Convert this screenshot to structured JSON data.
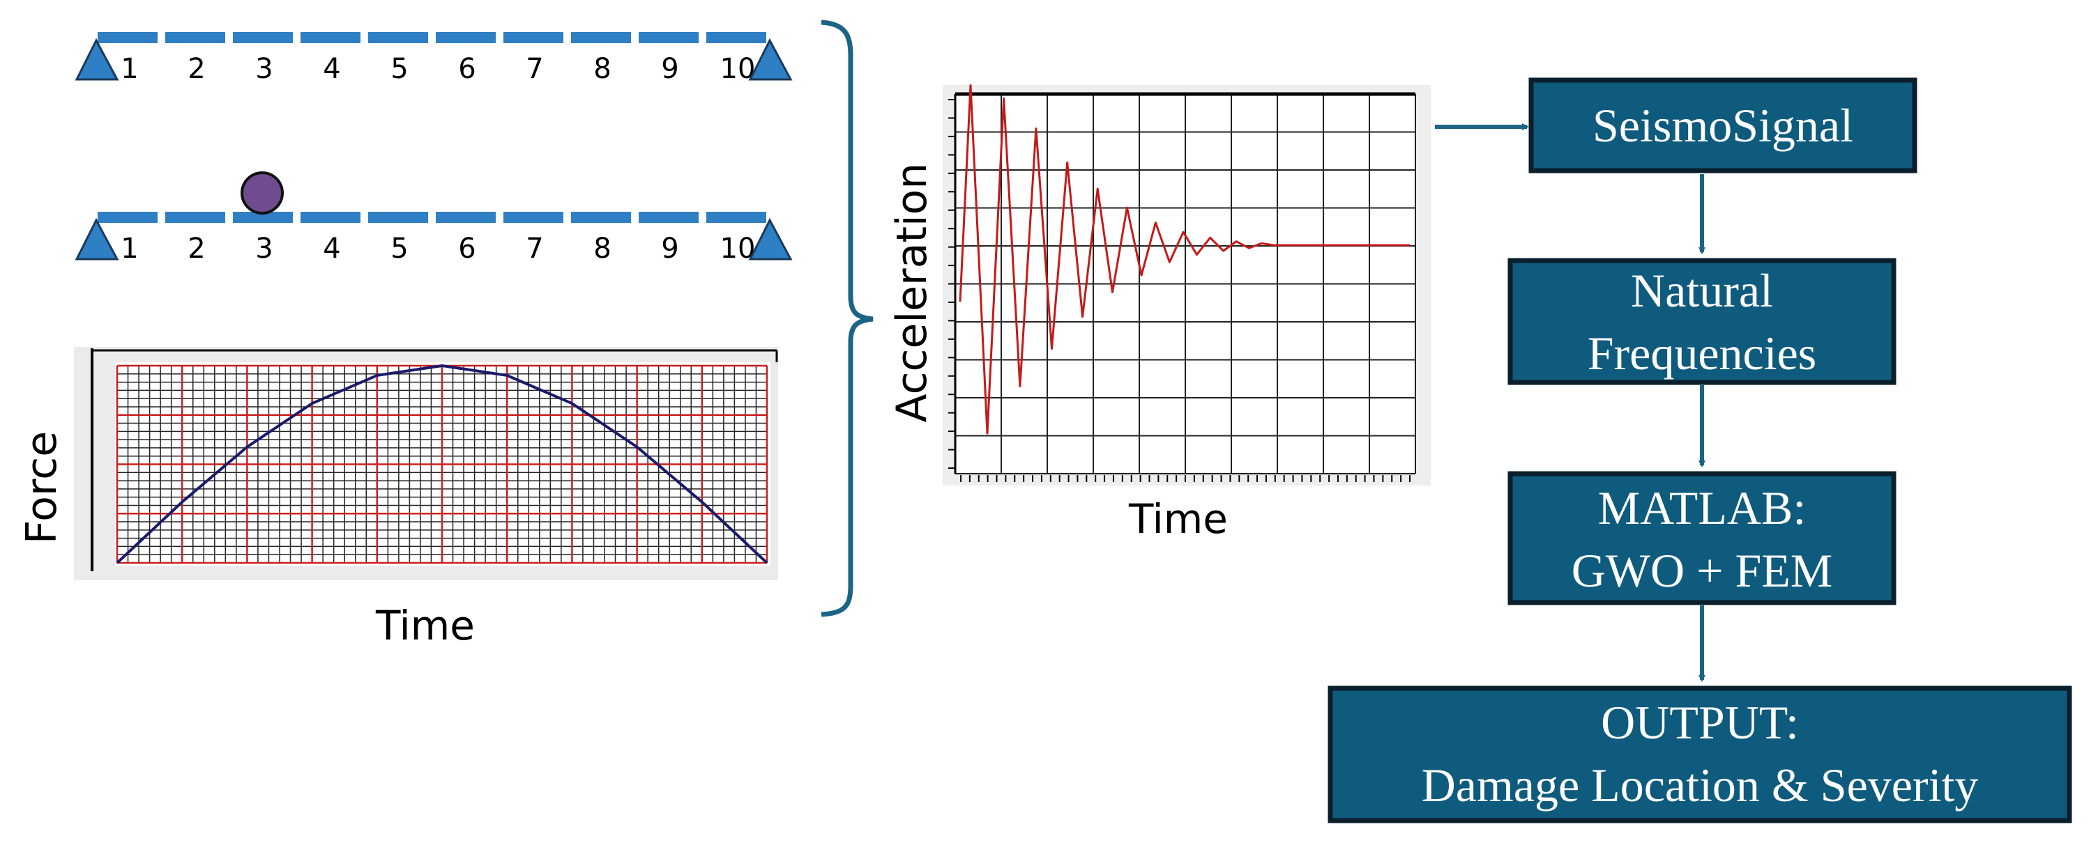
{
  "beam": {
    "element_labels": [
      "1",
      "2",
      "3",
      "4",
      "5",
      "6",
      "7",
      "8",
      "9",
      "10"
    ],
    "colors": {
      "beam": "#2e7fc4",
      "support": "#2e7fc4",
      "mass": "#6e4c8e"
    }
  },
  "force_chart": {
    "ylabel": "Force",
    "xlabel": "Time",
    "chart_data": {
      "type": "line",
      "shape": "half-sine pulse",
      "x": [
        0,
        1,
        2,
        3,
        4,
        5,
        6,
        7,
        8,
        9,
        10
      ],
      "y": [
        0,
        0.309,
        0.588,
        0.809,
        0.951,
        1.0,
        0.951,
        0.809,
        0.588,
        0.309,
        0
      ],
      "grid": true,
      "colors": {
        "line": "#1a1a6b",
        "major_grid": "#cc1f1f",
        "minor_grid": "#222222"
      }
    }
  },
  "accel_chart": {
    "ylabel": "Acceleration",
    "xlabel": "Time",
    "chart_data": {
      "type": "line",
      "shape": "damped free vibration",
      "peaks_y": [
        0.85,
        -1.0,
        0.78,
        -0.75,
        0.62,
        -0.55,
        0.44,
        -0.38,
        0.3,
        -0.25,
        0.2,
        -0.16,
        0.12,
        -0.09,
        0.07,
        -0.05,
        0.04,
        -0.03,
        0.02,
        -0.015,
        0.01
      ],
      "grid": true,
      "colors": {
        "line": "#c41a1a",
        "grid": "#222222"
      }
    }
  },
  "flow": {
    "steps": [
      {
        "lines": [
          "SeismoSignal"
        ]
      },
      {
        "lines": [
          "Natural",
          "Frequencies"
        ]
      },
      {
        "lines": [
          "MATLAB:",
          "GWO + FEM"
        ]
      },
      {
        "lines": [
          "OUTPUT:",
          "Damage Location & Severity"
        ]
      }
    ],
    "colors": {
      "box_fill": "#0e5b7e",
      "box_border": "#0a1e2c",
      "arrow": "#1b6485",
      "text": "#ffffff",
      "brace": "#1b6485"
    }
  }
}
